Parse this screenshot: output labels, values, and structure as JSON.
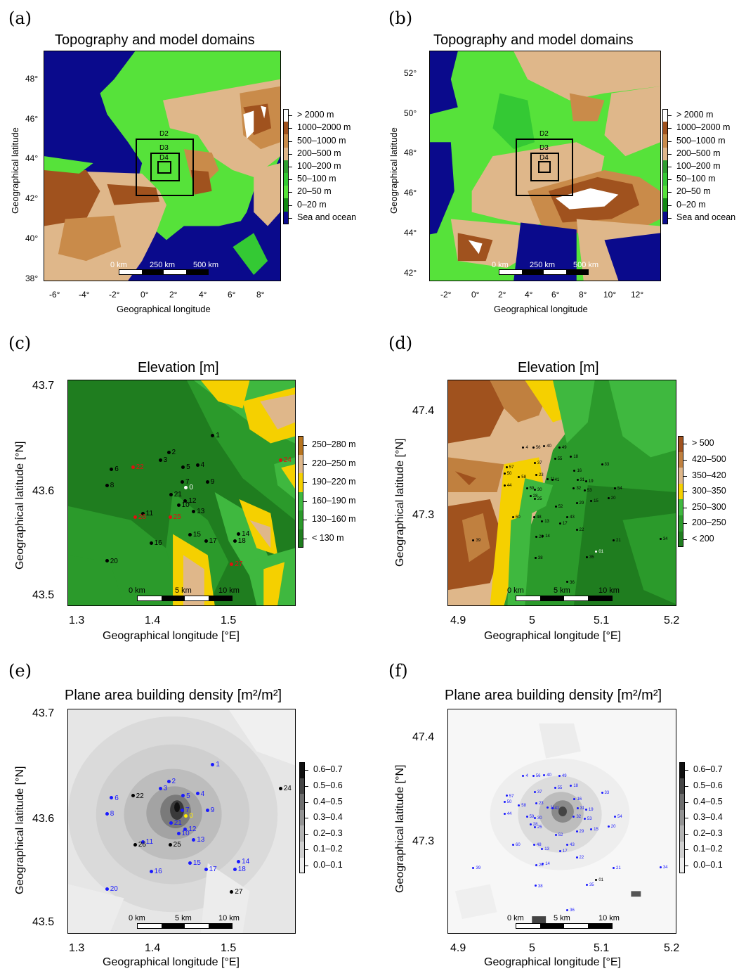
{
  "panels": {
    "a": {
      "letter": "(a)",
      "title": "Topography and model domains",
      "xticks": [
        "-6°",
        "-4°",
        "-2°",
        "0°",
        "2°",
        "4°",
        "6°",
        "8°"
      ],
      "yticks": [
        "48°",
        "46°",
        "44°",
        "42°",
        "40°",
        "38°"
      ],
      "xlabel": "Geographical longitude",
      "ylabel": "Geographical latitude",
      "domains": [
        "D2",
        "D3",
        "D4"
      ],
      "scalebar": [
        "0 km",
        "250 km",
        "500 km"
      ]
    },
    "b": {
      "letter": "(b)",
      "title": "Topography and model domains",
      "xticks": [
        "-2°",
        "0°",
        "2°",
        "4°",
        "6°",
        "8°",
        "10°",
        "12°"
      ],
      "yticks": [
        "52°",
        "50°",
        "48°",
        "46°",
        "44°",
        "42°"
      ],
      "xlabel": "Geographical longitude",
      "ylabel": "Geographical latitude",
      "domains": [
        "D2",
        "D3",
        "D4"
      ],
      "scalebar": [
        "0 km",
        "250 km",
        "500 km"
      ]
    },
    "c": {
      "letter": "(c)",
      "title": "Elevation [m]",
      "xticks": [
        "1.3",
        "1.4",
        "1.5"
      ],
      "yticks": [
        "43.7",
        "43.6",
        "43.5"
      ],
      "xlabel": "Geographical longitude [°E]",
      "ylabel": "Geographical latitude [°N]",
      "scalebar": [
        "0 km",
        "5 km",
        "10 km"
      ]
    },
    "d": {
      "letter": "(d)",
      "title": "Elevation [m]",
      "xticks": [
        "4.9",
        "5",
        "5.1",
        "5.2"
      ],
      "yticks": [
        "47.4",
        "47.3"
      ],
      "xlabel": "Geographical longitude [°E]",
      "ylabel": "Geographical latitude [°N]",
      "scalebar": [
        "0 km",
        "5 km",
        "10 km"
      ]
    },
    "e": {
      "letter": "(e)",
      "title": "Plane area building density [m²/m²]",
      "xticks": [
        "1.3",
        "1.4",
        "1.5"
      ],
      "yticks": [
        "43.7",
        "43.6",
        "43.5"
      ],
      "xlabel": "Geographical longitude [°E]",
      "ylabel": "Geographical latitude [°N]",
      "scalebar": [
        "0 km",
        "5 km",
        "10 km"
      ]
    },
    "f": {
      "letter": "(f)",
      "title": "Plane area building density [m²/m²]",
      "xticks": [
        "4.9",
        "5",
        "5.1",
        "5.2"
      ],
      "yticks": [
        "47.4",
        "47.3"
      ],
      "xlabel": "Geographical longitude [°E]",
      "ylabel": "Geographical latitude [°N]",
      "scalebar": [
        "0 km",
        "5 km",
        "10 km"
      ]
    }
  },
  "legends": {
    "topo": [
      {
        "label": "> 2000 m",
        "color": "#ffffff"
      },
      {
        "label": "1000–2000 m",
        "color": "#a0521e"
      },
      {
        "label": "500–1000 m",
        "color": "#c98b4a"
      },
      {
        "label": "200–500 m",
        "color": "#dfb78a"
      },
      {
        "label": "100–200 m",
        "color": "#2e9e2e"
      },
      {
        "label": "50–100 m",
        "color": "#34c934"
      },
      {
        "label": "20–50 m",
        "color": "#56e23a"
      },
      {
        "label": "0–20 m",
        "color": "#128a12"
      },
      {
        "label": "Sea and ocean",
        "color": "#0a0a8c"
      }
    ],
    "elev_c": [
      {
        "label": "250–280 m",
        "color": "#b8741e"
      },
      {
        "label": "220–250 m",
        "color": "#dfb78a"
      },
      {
        "label": "190–220 m",
        "color": "#f5d000"
      },
      {
        "label": "160–190 m",
        "color": "#3fb83f"
      },
      {
        "label": "130–160 m",
        "color": "#2b9a2b"
      },
      {
        "label": "< 130 m",
        "color": "#1f7d1f"
      }
    ],
    "elev_d": [
      {
        "label": "> 500",
        "color": "#a0521e"
      },
      {
        "label": "420–500",
        "color": "#c0803f"
      },
      {
        "label": "350–420",
        "color": "#dfb78a"
      },
      {
        "label": "300–350",
        "color": "#f5d000"
      },
      {
        "label": "250–300",
        "color": "#3fb83f"
      },
      {
        "label": "200–250",
        "color": "#2b9a2b"
      },
      {
        "label": "< 200",
        "color": "#1f7d1f"
      }
    ],
    "density": [
      {
        "label": "0.6–0.7",
        "color": "#111111"
      },
      {
        "label": "0.5–0.6",
        "color": "#444444"
      },
      {
        "label": "0.4–0.5",
        "color": "#6e6e6e"
      },
      {
        "label": "0.3–0.4",
        "color": "#939393"
      },
      {
        "label": "0.2–0.3",
        "color": "#b3b3b3"
      },
      {
        "label": "0.1–0.2",
        "color": "#cfcfcf"
      },
      {
        "label": "0.0–0.1",
        "color": "#ececec"
      }
    ]
  },
  "stations_toulouse": [
    {
      "id": "0",
      "lon": 1.445,
      "lat": 43.603,
      "kind": "ref"
    },
    {
      "id": "1",
      "lon": 1.48,
      "lat": 43.652,
      "kind": "blue"
    },
    {
      "id": "2",
      "lon": 1.422,
      "lat": 43.636,
      "kind": "blue"
    },
    {
      "id": "3",
      "lon": 1.411,
      "lat": 43.629,
      "kind": "blue"
    },
    {
      "id": "4",
      "lon": 1.46,
      "lat": 43.624,
      "kind": "blue"
    },
    {
      "id": "5",
      "lon": 1.441,
      "lat": 43.622,
      "kind": "blue"
    },
    {
      "id": "6",
      "lon": 1.347,
      "lat": 43.62,
      "kind": "blue"
    },
    {
      "id": "7",
      "lon": 1.44,
      "lat": 43.608,
      "kind": "blue"
    },
    {
      "id": "8",
      "lon": 1.341,
      "lat": 43.605,
      "kind": "blue"
    },
    {
      "id": "9",
      "lon": 1.473,
      "lat": 43.608,
      "kind": "blue"
    },
    {
      "id": "10",
      "lon": 1.435,
      "lat": 43.586,
      "kind": "blue"
    },
    {
      "id": "11",
      "lon": 1.388,
      "lat": 43.578,
      "kind": "blue"
    },
    {
      "id": "12",
      "lon": 1.444,
      "lat": 43.59,
      "kind": "blue"
    },
    {
      "id": "13",
      "lon": 1.455,
      "lat": 43.58,
      "kind": "blue"
    },
    {
      "id": "14",
      "lon": 1.514,
      "lat": 43.559,
      "kind": "blue"
    },
    {
      "id": "15",
      "lon": 1.45,
      "lat": 43.558,
      "kind": "blue"
    },
    {
      "id": "16",
      "lon": 1.399,
      "lat": 43.55,
      "kind": "blue"
    },
    {
      "id": "17",
      "lon": 1.471,
      "lat": 43.552,
      "kind": "blue"
    },
    {
      "id": "18",
      "lon": 1.509,
      "lat": 43.552,
      "kind": "blue"
    },
    {
      "id": "20",
      "lon": 1.341,
      "lat": 43.533,
      "kind": "blue"
    },
    {
      "id": "21",
      "lon": 1.425,
      "lat": 43.596,
      "kind": "blue"
    },
    {
      "id": "22",
      "lon": 1.375,
      "lat": 43.622,
      "kind": "extra"
    },
    {
      "id": "24",
      "lon": 1.569,
      "lat": 43.629,
      "kind": "extra"
    },
    {
      "id": "25",
      "lon": 1.424,
      "lat": 43.575,
      "kind": "extra"
    },
    {
      "id": "26",
      "lon": 1.378,
      "lat": 43.575,
      "kind": "extra"
    },
    {
      "id": "27",
      "lon": 1.505,
      "lat": 43.53,
      "kind": "extra"
    }
  ],
  "stations_dijon": [
    {
      "id": "01",
      "lon": 5.088,
      "lat": 47.267,
      "kind": "ref"
    },
    {
      "id": "4",
      "lon": 4.987,
      "lat": 47.366,
      "kind": "blue"
    },
    {
      "id": "56",
      "lon": 5.001,
      "lat": 47.366,
      "kind": "blue"
    },
    {
      "id": "40",
      "lon": 5.016,
      "lat": 47.367,
      "kind": "blue"
    },
    {
      "id": "49",
      "lon": 5.037,
      "lat": 47.366,
      "kind": "blue"
    },
    {
      "id": "18",
      "lon": 5.053,
      "lat": 47.357,
      "kind": "blue"
    },
    {
      "id": "55",
      "lon": 5.031,
      "lat": 47.355,
      "kind": "blue"
    },
    {
      "id": "33",
      "lon": 5.096,
      "lat": 47.35,
      "kind": "blue"
    },
    {
      "id": "57",
      "lon": 4.964,
      "lat": 47.347,
      "kind": "blue"
    },
    {
      "id": "37",
      "lon": 5.003,
      "lat": 47.351,
      "kind": "blue"
    },
    {
      "id": "16",
      "lon": 5.058,
      "lat": 47.344,
      "kind": "blue"
    },
    {
      "id": "50",
      "lon": 4.961,
      "lat": 47.341,
      "kind": "blue"
    },
    {
      "id": "58",
      "lon": 4.981,
      "lat": 47.338,
      "kind": "blue"
    },
    {
      "id": "23",
      "lon": 5.005,
      "lat": 47.34,
      "kind": "blue"
    },
    {
      "id": "11",
      "lon": 5.021,
      "lat": 47.336,
      "kind": "blue"
    },
    {
      "id": "41",
      "lon": 5.027,
      "lat": 47.335,
      "kind": "blue"
    },
    {
      "id": "31",
      "lon": 5.062,
      "lat": 47.335,
      "kind": "blue"
    },
    {
      "id": "19",
      "lon": 5.074,
      "lat": 47.334,
      "kind": "blue"
    },
    {
      "id": "44",
      "lon": 4.961,
      "lat": 47.33,
      "kind": "blue"
    },
    {
      "id": "59",
      "lon": 4.992,
      "lat": 47.327,
      "kind": "blue"
    },
    {
      "id": "30",
      "lon": 5.003,
      "lat": 47.326,
      "kind": "blue"
    },
    {
      "id": "32",
      "lon": 5.057,
      "lat": 47.327,
      "kind": "blue"
    },
    {
      "id": "53",
      "lon": 5.072,
      "lat": 47.325,
      "kind": "blue"
    },
    {
      "id": "54",
      "lon": 5.114,
      "lat": 47.327,
      "kind": "blue"
    },
    {
      "id": "28",
      "lon": 4.997,
      "lat": 47.32,
      "kind": "blue"
    },
    {
      "id": "25",
      "lon": 5.003,
      "lat": 47.317,
      "kind": "blue"
    },
    {
      "id": "20",
      "lon": 5.105,
      "lat": 47.318,
      "kind": "blue"
    },
    {
      "id": "15",
      "lon": 5.081,
      "lat": 47.315,
      "kind": "blue"
    },
    {
      "id": "29",
      "lon": 5.061,
      "lat": 47.313,
      "kind": "blue"
    },
    {
      "id": "52",
      "lon": 5.032,
      "lat": 47.31,
      "kind": "blue"
    },
    {
      "id": "60",
      "lon": 4.973,
      "lat": 47.3,
      "kind": "blue"
    },
    {
      "id": "48",
      "lon": 5.002,
      "lat": 47.3,
      "kind": "blue"
    },
    {
      "id": "13",
      "lon": 5.013,
      "lat": 47.296,
      "kind": "blue"
    },
    {
      "id": "43",
      "lon": 5.048,
      "lat": 47.3,
      "kind": "blue"
    },
    {
      "id": "17",
      "lon": 5.038,
      "lat": 47.294,
      "kind": "blue"
    },
    {
      "id": "22",
      "lon": 5.061,
      "lat": 47.288,
      "kind": "blue"
    },
    {
      "id": "26",
      "lon": 5.005,
      "lat": 47.281,
      "kind": "blue"
    },
    {
      "id": "14",
      "lon": 5.014,
      "lat": 47.282,
      "kind": "blue"
    },
    {
      "id": "39",
      "lon": 4.918,
      "lat": 47.278,
      "kind": "blue"
    },
    {
      "id": "21",
      "lon": 5.112,
      "lat": 47.278,
      "kind": "blue"
    },
    {
      "id": "34",
      "lon": 5.177,
      "lat": 47.279,
      "kind": "blue"
    },
    {
      "id": "38",
      "lon": 5.004,
      "lat": 47.261,
      "kind": "blue"
    },
    {
      "id": "35",
      "lon": 5.075,
      "lat": 47.262,
      "kind": "blue"
    },
    {
      "id": "36",
      "lon": 5.048,
      "lat": 47.238,
      "kind": "blue"
    }
  ],
  "colors": {
    "sea": "#0a0a8c",
    "station_blue": "#1a1aff",
    "station_red": "#e01010",
    "ref_white": "#ffffff",
    "ref_yellow": "#ffee00"
  }
}
